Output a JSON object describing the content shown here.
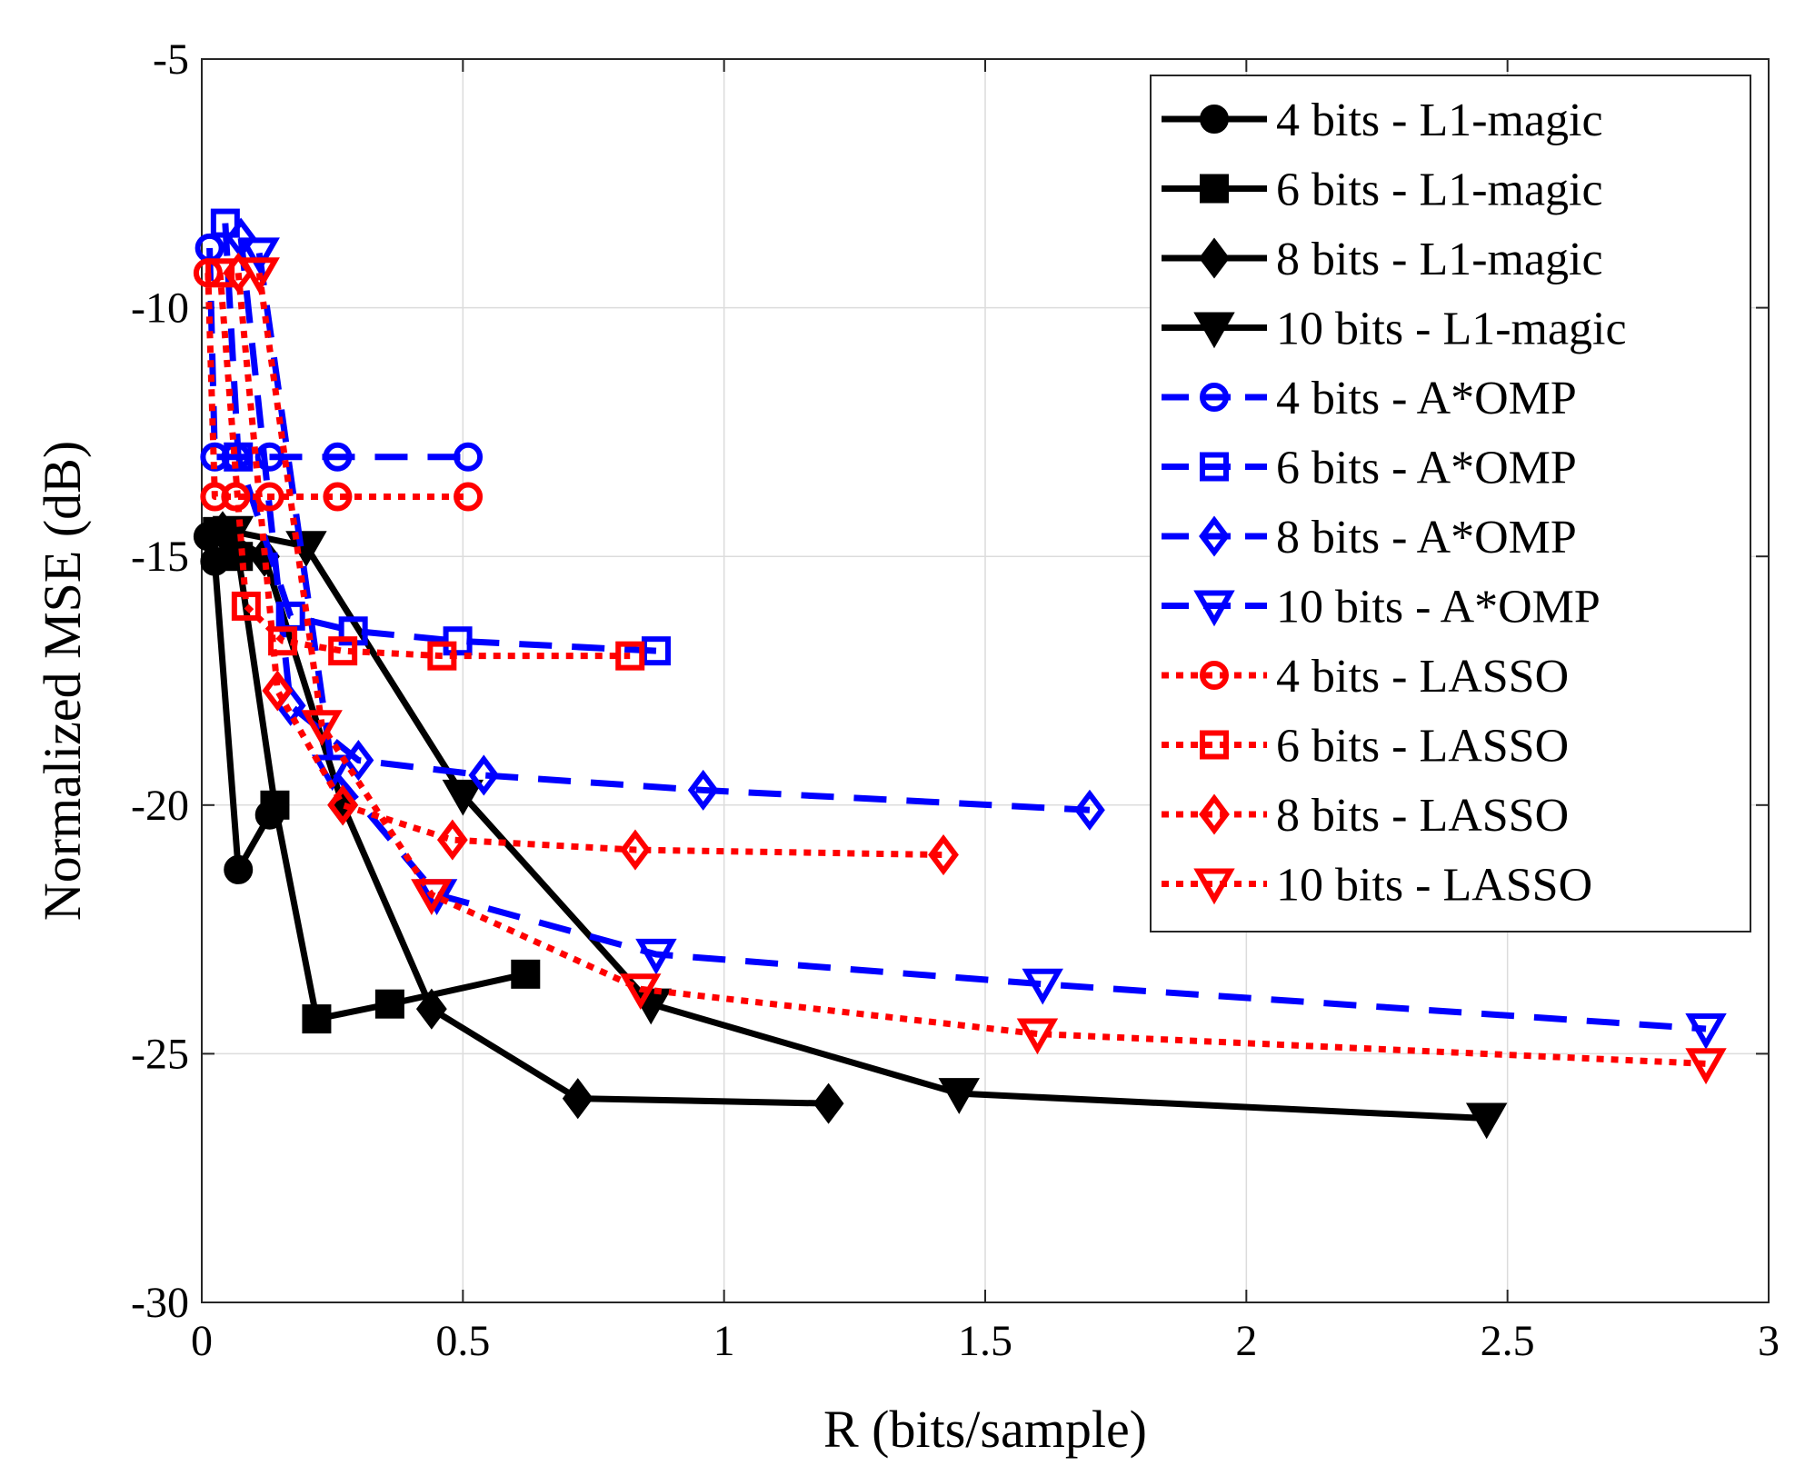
{
  "chart_data": {
    "type": "line",
    "title": "",
    "xlabel": "R (bits/sample)",
    "ylabel": "Normalized MSE (dB)",
    "xlim": [
      0,
      3
    ],
    "ylim": [
      -30,
      -5
    ],
    "xticks": [
      0,
      0.5,
      1,
      1.5,
      2,
      2.5,
      3
    ],
    "xtick_labels": [
      "0",
      "0.5",
      "1",
      "1.5",
      "2",
      "2.5",
      "3"
    ],
    "yticks": [
      -30,
      -25,
      -20,
      -15,
      -10,
      -5
    ],
    "ytick_labels": [
      "-30",
      "-25",
      "-20",
      "-15",
      "-10",
      "-5"
    ],
    "grid": true,
    "legend_position": "top-right",
    "series": [
      {
        "name": "4 bits - L1-magic",
        "color": "#000000",
        "line": "solid",
        "marker": "circle",
        "filled": true,
        "x": [
          0.012,
          0.025,
          0.07,
          0.13
        ],
        "y": [
          -14.6,
          -15.1,
          -21.3,
          -20.2
        ]
      },
      {
        "name": "6 bits - L1-magic",
        "color": "#000000",
        "line": "solid",
        "marker": "square",
        "filled": true,
        "x": [
          0.03,
          0.07,
          0.14,
          0.22,
          0.36,
          0.62
        ],
        "y": [
          -14.5,
          -15.0,
          -20.0,
          -24.3,
          -24.0,
          -23.4
        ]
      },
      {
        "name": "8 bits - L1-magic",
        "color": "#000000",
        "line": "solid",
        "marker": "diamond",
        "filled": true,
        "x": [
          0.04,
          0.12,
          0.27,
          0.44,
          0.72,
          1.2
        ],
        "y": [
          -14.5,
          -15.0,
          -20.0,
          -24.1,
          -25.9,
          -26.0
        ]
      },
      {
        "name": "10 bits - L1-magic",
        "color": "#000000",
        "line": "solid",
        "marker": "triangle-down",
        "filled": true,
        "x": [
          0.06,
          0.2,
          0.5,
          0.86,
          1.45,
          2.46
        ],
        "y": [
          -14.5,
          -14.8,
          -19.8,
          -24.0,
          -25.8,
          -26.3
        ]
      },
      {
        "name": "4 bits - A*OMP",
        "color": "#0000ff",
        "line": "dashed",
        "marker": "circle",
        "filled": false,
        "x": [
          0.015,
          0.025,
          0.065,
          0.13,
          0.26,
          0.51
        ],
        "y": [
          -8.8,
          -13.0,
          -13.0,
          -13.0,
          -13.0,
          -13.0
        ]
      },
      {
        "name": "6 bits - A*OMP",
        "color": "#0000ff",
        "line": "dashed",
        "marker": "square",
        "filled": false,
        "x": [
          0.045,
          0.07,
          0.17,
          0.29,
          0.49,
          0.87
        ],
        "y": [
          -8.3,
          -13.0,
          -16.2,
          -16.5,
          -16.7,
          -16.9
        ]
      },
      {
        "name": "8 bits - A*OMP",
        "color": "#0000ff",
        "line": "dashed",
        "marker": "diamond",
        "filled": false,
        "x": [
          0.075,
          0.17,
          0.3,
          0.54,
          0.96,
          1.7
        ],
        "y": [
          -8.6,
          -18.0,
          -19.1,
          -19.4,
          -19.7,
          -20.1
        ]
      },
      {
        "name": "10 bits - A*OMP",
        "color": "#0000ff",
        "line": "dashed",
        "marker": "triangle-down",
        "filled": false,
        "x": [
          0.11,
          0.25,
          0.45,
          0.87,
          1.61,
          2.88
        ],
        "y": [
          -8.9,
          -19.3,
          -21.8,
          -23.0,
          -23.6,
          -24.5
        ]
      },
      {
        "name": "4 bits - LASSO",
        "color": "#ff0000",
        "line": "dotted",
        "marker": "circle",
        "filled": false,
        "x": [
          0.012,
          0.025,
          0.065,
          0.13,
          0.26,
          0.51
        ],
        "y": [
          -9.3,
          -13.8,
          -13.8,
          -13.8,
          -13.8,
          -13.8
        ]
      },
      {
        "name": "6 bits - LASSO",
        "color": "#ff0000",
        "line": "dotted",
        "marker": "square",
        "filled": false,
        "x": [
          0.035,
          0.085,
          0.155,
          0.27,
          0.46,
          0.82
        ],
        "y": [
          -9.3,
          -16.0,
          -16.7,
          -16.9,
          -17.0,
          -17.0
        ]
      },
      {
        "name": "8 bits - LASSO",
        "color": "#ff0000",
        "line": "dotted",
        "marker": "diamond",
        "filled": false,
        "x": [
          0.07,
          0.145,
          0.27,
          0.48,
          0.83,
          1.42
        ],
        "y": [
          -9.3,
          -17.7,
          -20.0,
          -20.7,
          -20.9,
          -21.0
        ]
      },
      {
        "name": "10 bits - LASSO",
        "color": "#ff0000",
        "line": "dotted",
        "marker": "triangle-down",
        "filled": false,
        "x": [
          0.11,
          0.23,
          0.44,
          0.84,
          1.6,
          2.88
        ],
        "y": [
          -9.3,
          -18.4,
          -21.8,
          -23.7,
          -24.6,
          -25.2
        ]
      }
    ]
  }
}
